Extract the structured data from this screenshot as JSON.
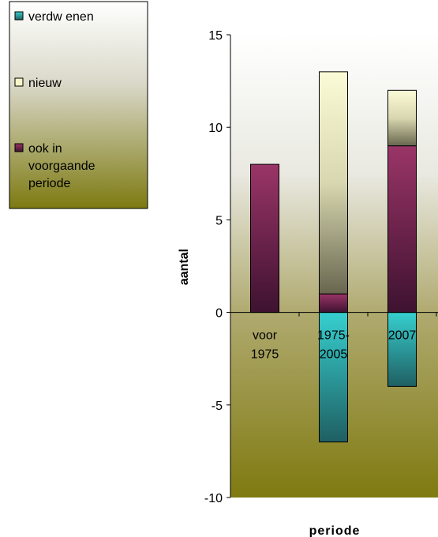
{
  "chart_data": {
    "type": "bar",
    "stacked": true,
    "categories": [
      "voor 1975",
      "1975-2005",
      "2007"
    ],
    "category_lines": [
      [
        "voor",
        "1975"
      ],
      [
        "1975-",
        "2005"
      ],
      [
        "2007"
      ]
    ],
    "series": [
      {
        "name": "verdw enen",
        "values": [
          0,
          -7,
          -4
        ],
        "color": "#2a9a9a"
      },
      {
        "name": "nieuw",
        "values": [
          0,
          12,
          3
        ],
        "color": "#f7f6c8"
      },
      {
        "name": "ook in voorgaande periode",
        "values": [
          8,
          1,
          9
        ],
        "color": "#8a2a5a"
      }
    ],
    "legend": {
      "position": "top-left",
      "entries": [
        {
          "lines": [
            "verdw enen"
          ]
        },
        {
          "lines": [
            "nieuw"
          ]
        },
        {
          "lines": [
            "ook in",
            "voorgaande",
            "periode"
          ]
        }
      ]
    },
    "xlabel": "periode",
    "ylabel": "aantal",
    "ylim": [
      -10,
      15
    ],
    "yticks": [
      15,
      10,
      5,
      0,
      -5,
      -10
    ],
    "ytick_labels": [
      "15",
      "10",
      "5",
      "0",
      "-5",
      "-10"
    ],
    "grid": false,
    "background": "gradient olive"
  }
}
